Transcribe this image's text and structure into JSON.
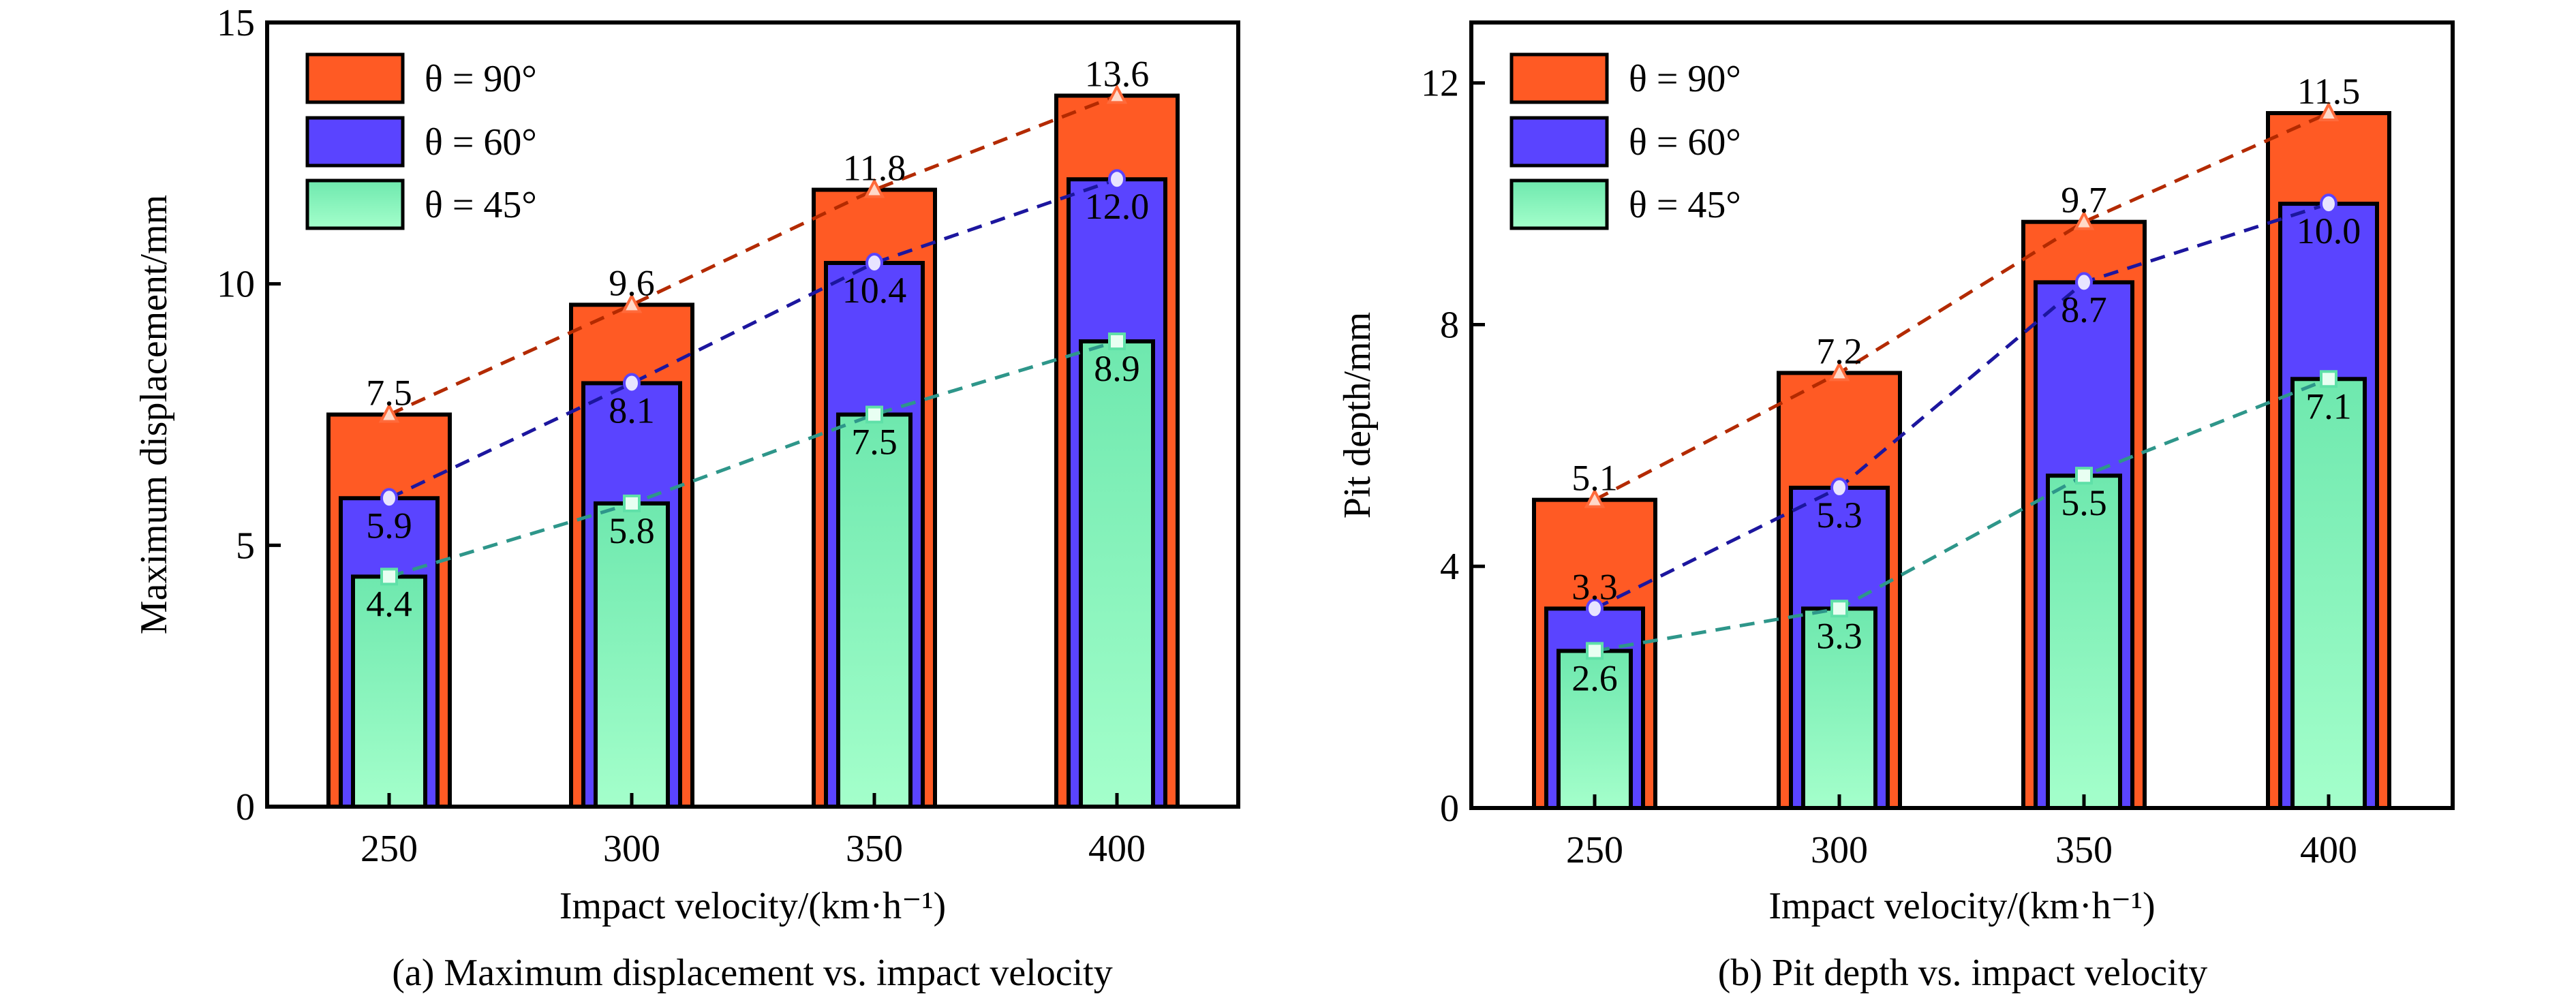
{
  "chart_data": [
    {
      "type": "bar",
      "caption": "(a) Maximum displacement vs. impact velocity",
      "xlabel": "Impact velocity/(km·h⁻¹)",
      "ylabel": "Maximum displacement/mm",
      "categories": [
        "250",
        "300",
        "350",
        "400"
      ],
      "ylim": [
        0,
        15
      ],
      "yticks": [
        0,
        5,
        10,
        15
      ],
      "legend_position": "top-left",
      "grid": false,
      "series": [
        {
          "name": "θ = 90°",
          "values": [
            7.5,
            9.6,
            11.8,
            13.6
          ],
          "color": "#FF5A24",
          "line_color": "#B32A00",
          "marker": "triangle"
        },
        {
          "name": "θ = 60°",
          "values": [
            5.9,
            8.1,
            10.4,
            12.0
          ],
          "color": "#5A44FF",
          "line_color": "#1C169E",
          "marker": "circle"
        },
        {
          "name": "θ = 45°",
          "values": [
            4.4,
            5.8,
            7.5,
            8.9
          ],
          "color": "#7EEDB6",
          "line_color": "#2E968A",
          "marker": "square"
        }
      ]
    },
    {
      "type": "bar",
      "caption": "(b) Pit depth vs. impact velocity",
      "xlabel": "Impact velocity/(km·h⁻¹)",
      "ylabel": "Pit depth/mm",
      "categories": [
        "250",
        "300",
        "350",
        "400"
      ],
      "ylim": [
        0,
        13
      ],
      "yticks": [
        0,
        4,
        8,
        12
      ],
      "legend_position": "top-left",
      "grid": false,
      "series": [
        {
          "name": "θ = 90°",
          "values": [
            5.1,
            7.2,
            9.7,
            11.5
          ],
          "color": "#FF5A24",
          "line_color": "#B32A00",
          "marker": "triangle"
        },
        {
          "name": "θ = 60°",
          "values": [
            3.3,
            5.3,
            8.7,
            10.0
          ],
          "color": "#5A44FF",
          "line_color": "#1C169E",
          "marker": "circle"
        },
        {
          "name": "θ = 45°",
          "values": [
            2.6,
            3.3,
            5.5,
            7.1
          ],
          "color": "#7EEDB6",
          "line_color": "#2E968A",
          "marker": "square"
        }
      ]
    }
  ]
}
